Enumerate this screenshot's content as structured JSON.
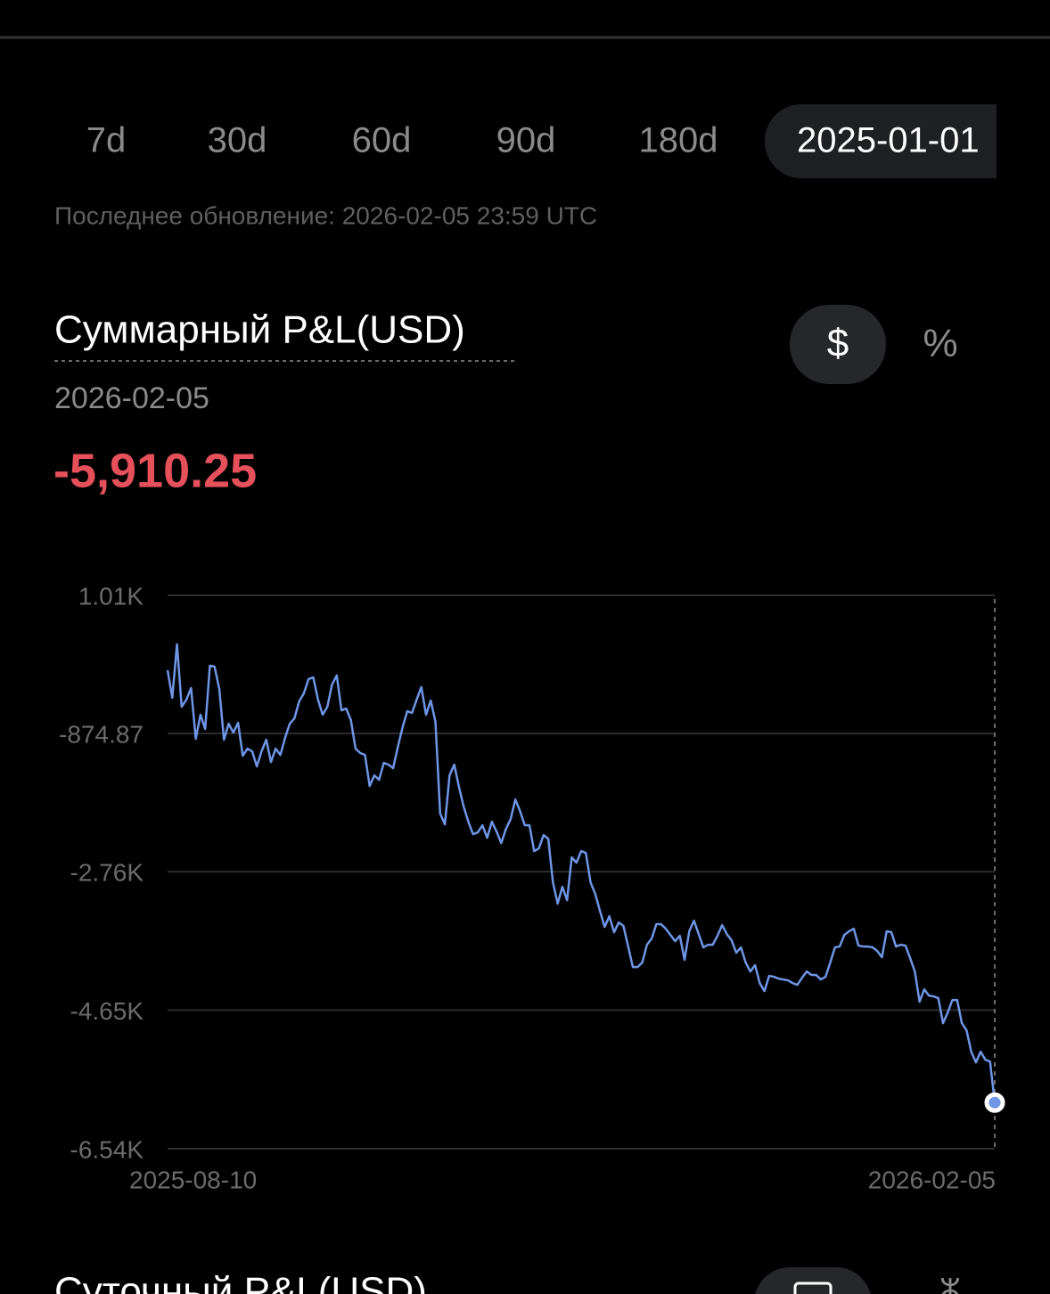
{
  "tabs": [
    "7d",
    "30d",
    "60d",
    "90d",
    "180d",
    "2025-01-01"
  ],
  "last_updated": "Последнее обновление: 2026-02-05 23:59 UTC",
  "summary": {
    "title": "Суммарный P&L(USD)",
    "units": [
      "$",
      "%"
    ],
    "date": "2026-02-05",
    "value": "-5,910.25"
  },
  "chart_data": {
    "type": "line",
    "color": "#6f95e6",
    "grid": true,
    "ylim": [
      -6540,
      1010
    ],
    "yticks": [
      {
        "value": 1010,
        "label": "1.01K"
      },
      -874.87,
      {
        "value": -2760,
        "label": "-2.76K"
      },
      {
        "value": -4650,
        "label": "-4.65K"
      },
      {
        "value": -6540,
        "label": "-6.54K"
      }
    ],
    "categories": [
      "2025-08-10",
      null,
      null,
      null,
      null,
      null,
      null,
      null,
      null,
      null,
      null,
      null,
      null,
      null,
      null,
      null,
      null,
      null,
      null,
      null,
      null,
      null,
      null,
      null,
      null,
      null,
      null,
      null,
      null,
      null,
      null,
      null,
      null,
      null,
      null,
      null,
      null,
      null,
      null,
      null,
      null,
      null,
      null,
      null,
      null,
      null,
      null,
      null,
      null,
      null,
      null,
      null,
      null,
      null,
      null,
      null,
      null,
      null,
      null,
      null,
      null,
      null,
      null,
      null,
      null,
      null,
      null,
      null,
      null,
      null,
      null,
      null,
      null,
      null,
      null,
      null,
      null,
      null,
      null,
      null,
      null,
      null,
      null,
      null,
      null,
      null,
      null,
      null,
      null,
      null,
      null,
      null,
      null,
      null,
      null,
      null,
      null,
      null,
      null,
      null,
      null,
      null,
      null,
      null,
      null,
      null,
      null,
      null,
      null,
      null,
      null,
      null,
      null,
      null,
      null,
      null,
      null,
      null,
      null,
      null,
      null,
      null,
      null,
      null,
      null,
      null,
      null,
      null,
      null,
      null,
      null,
      null,
      null,
      null,
      null,
      null,
      null,
      null,
      null,
      null,
      null,
      null,
      null,
      null,
      null,
      null,
      null,
      null,
      null,
      null,
      null,
      null,
      null,
      null,
      null,
      null,
      null,
      null,
      null,
      null,
      null,
      null,
      null,
      null,
      null,
      null,
      null,
      null,
      null,
      null,
      null,
      null,
      null,
      null,
      null,
      null,
      "2026-02-05"
    ],
    "values": [
      -11,
      -388,
      341,
      -510,
      -413,
      -255,
      -948,
      -619,
      -814,
      49,
      37,
      -267,
      -960,
      -741,
      -863,
      -729,
      -1179,
      -1082,
      -1118,
      -1325,
      -1118,
      -960,
      -1264,
      -1082,
      -1167,
      -936,
      -741,
      -668,
      -437,
      -328,
      -133,
      -109,
      -413,
      -619,
      -510,
      -206,
      -84,
      -559,
      -534,
      -692,
      -1082,
      -1142,
      -1167,
      -1592,
      -1446,
      -1507,
      -1276,
      -1300,
      -1349,
      -1057,
      -790,
      -571,
      -595,
      -413,
      -242,
      -619,
      -425,
      -717,
      -1969,
      -2115,
      -1446,
      -1300,
      -1604,
      -1872,
      -2079,
      -2249,
      -2225,
      -2127,
      -2298,
      -2079,
      -2212,
      -2370,
      -2176,
      -2042,
      -1775,
      -1933,
      -2127,
      -2127,
      -2480,
      -2443,
      -2261,
      -2310,
      -2906,
      -3197,
      -2966,
      -3149,
      -2565,
      -2638,
      -2480,
      -2504,
      -2906,
      -3064,
      -3295,
      -3514,
      -3368,
      -3586,
      -3453,
      -3501,
      -3781,
      -4061,
      -4061,
      -4000,
      -3757,
      -3672,
      -3477,
      -3477,
      -3538,
      -3623,
      -3708,
      -3635,
      -3963,
      -3574,
      -3428,
      -3611,
      -3793,
      -3757,
      -3757,
      -3635,
      -3489,
      -3611,
      -3696,
      -3866,
      -3793,
      -4000,
      -4122,
      -4036,
      -4280,
      -4389,
      -4182,
      -4194,
      -4219,
      -4231,
      -4243,
      -4280,
      -4304,
      -4207,
      -4122,
      -4170,
      -4170,
      -4231,
      -4194,
      -4000,
      -3793,
      -3781,
      -3623,
      -3574,
      -3538,
      -3769,
      -3781,
      -3781,
      -3793,
      -3842,
      -3927,
      -3574,
      -3586,
      -3781,
      -3757,
      -3769,
      -3939,
      -4122,
      -4535,
      -4365,
      -4450,
      -4462,
      -4486,
      -4827,
      -4681,
      -4511,
      -4511,
      -4827,
      -4924,
      -5216,
      -5362,
      -5216,
      -5325,
      -5350,
      -5910.25
    ]
  },
  "next_section": {
    "title": "Суточный P&L(USD)"
  }
}
